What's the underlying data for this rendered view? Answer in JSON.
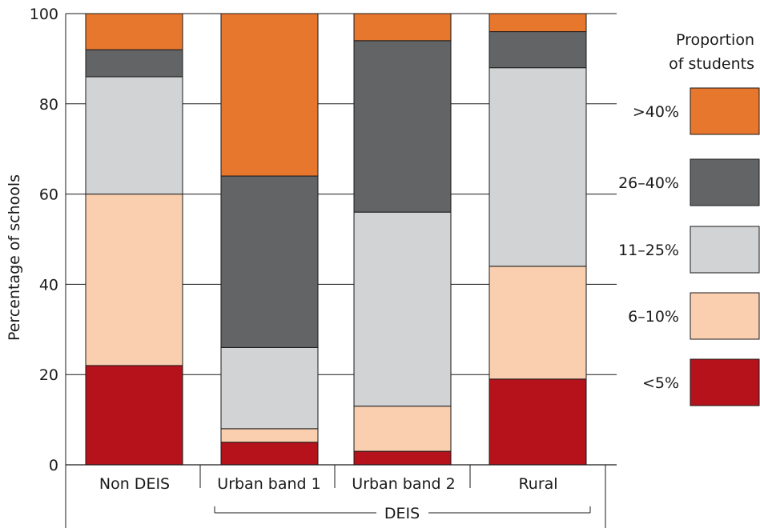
{
  "chart_data": {
    "type": "bar",
    "stacked": true,
    "categories": [
      "Non DEIS",
      "Urban band 1",
      "Urban band 2",
      "Rural"
    ],
    "group_label": "DEIS",
    "grouped_categories": [
      "Urban band 1",
      "Urban band 2",
      "Rural"
    ],
    "ylabel": "Percentage of schools",
    "xlabel": "",
    "ylim": [
      0,
      100
    ],
    "yticks": [
      0,
      20,
      40,
      60,
      80,
      100
    ],
    "grid": true,
    "legend_title": "Proportion of students",
    "legend_title_lines": [
      "Proportion",
      "of students"
    ],
    "legend_position": "right",
    "series": [
      {
        "name": "<5%",
        "color": "#b5121b",
        "values": [
          22,
          5,
          3,
          19
        ]
      },
      {
        "name": "6–10%",
        "color": "#f9cfb0",
        "values": [
          38,
          3,
          10,
          25
        ]
      },
      {
        "name": "11–25%",
        "color": "#d1d3d4",
        "values": [
          26,
          18,
          43,
          44
        ]
      },
      {
        "name": "26–40%",
        "color": "#636466",
        "values": [
          6,
          38,
          38,
          8
        ]
      },
      {
        "name": ">40%",
        "color": "#e8772e",
        "values": [
          8,
          36,
          6,
          4
        ]
      }
    ]
  }
}
